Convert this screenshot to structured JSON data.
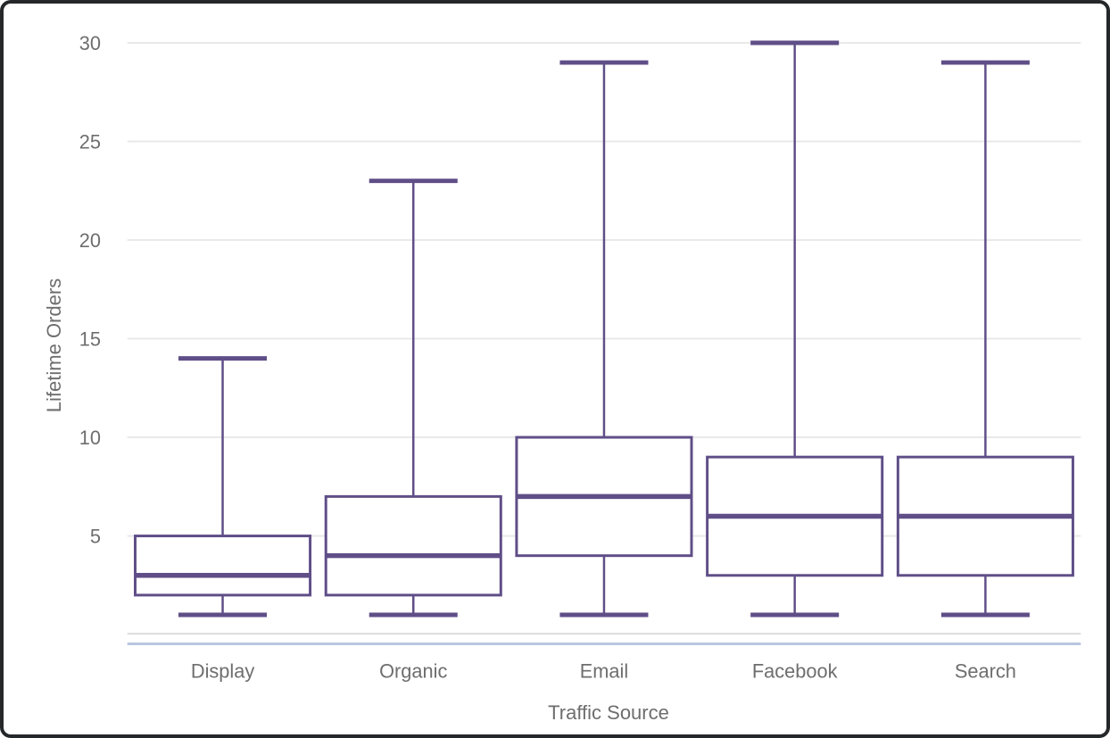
{
  "chart_data": {
    "type": "boxplot",
    "title": "",
    "xlabel": "Traffic Source",
    "ylabel": "Lifetime Orders",
    "categories": [
      "Display",
      "Organic",
      "Email",
      "Facebook",
      "Search"
    ],
    "series": [
      {
        "name": "Display",
        "min": 1,
        "q1": 2,
        "median": 3,
        "q3": 5,
        "max": 14
      },
      {
        "name": "Organic",
        "min": 1,
        "q1": 2,
        "median": 4,
        "q3": 7,
        "max": 23
      },
      {
        "name": "Email",
        "min": 1,
        "q1": 4,
        "median": 7,
        "q3": 10,
        "max": 29
      },
      {
        "name": "Facebook",
        "min": 1,
        "q1": 3,
        "median": 6,
        "q3": 9,
        "max": 30
      },
      {
        "name": "Search",
        "min": 1,
        "q1": 3,
        "median": 6,
        "q3": 9,
        "max": 29
      }
    ],
    "yticks": [
      5,
      10,
      15,
      20,
      25,
      30
    ],
    "ylim": [
      0,
      30.5
    ],
    "grid": true,
    "legend": "none",
    "colors": {
      "box_stroke": "#5f4e87",
      "box_fill": "#ffffff",
      "gridline": "#e9e9e9",
      "axis_baseline": "#dcdcdc",
      "slider_line": "#b9c7e0",
      "text": "#6e6e6e",
      "card_border": "#25282a",
      "background": "#ffffff"
    }
  }
}
